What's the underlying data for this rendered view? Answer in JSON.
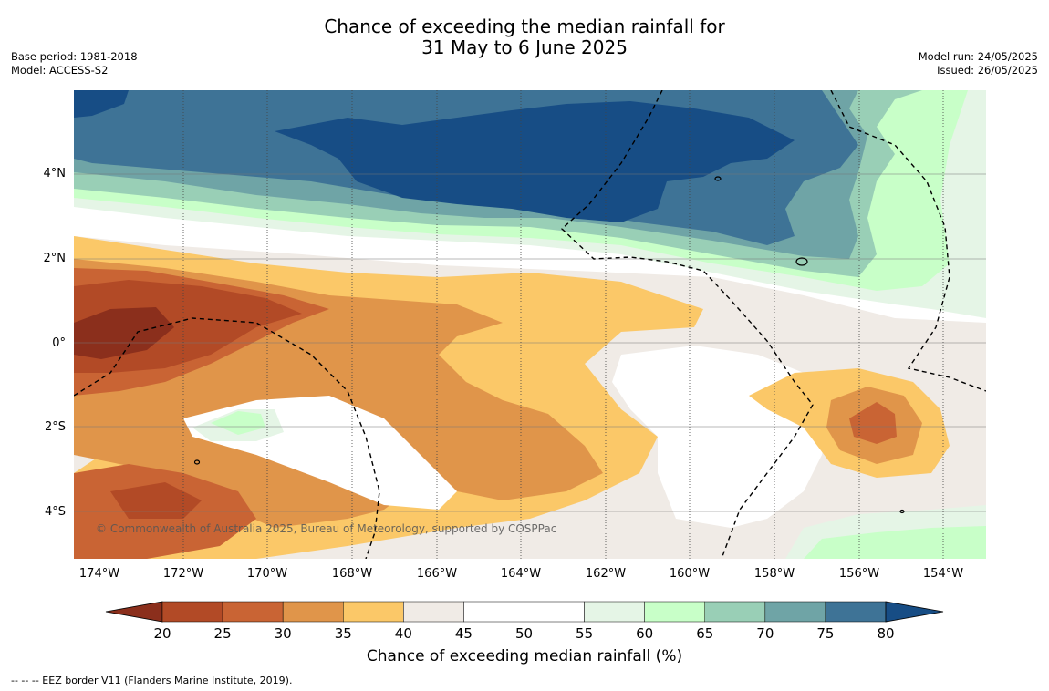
{
  "title": {
    "line1": "Chance of exceeding the median rainfall for",
    "line2": "31 May to 6 June 2025"
  },
  "meta_left": {
    "base_period": "Base period: 1981-2018",
    "model": "Model: ACCESS-S2"
  },
  "meta_right": {
    "model_run": "Model run: 24/05/2025",
    "issued": "Issued: 26/05/2025"
  },
  "map": {
    "lat_ticks": [
      "4°N",
      "2°N",
      "0°",
      "2°S",
      "4°S"
    ],
    "lon_ticks": [
      "174°W",
      "172°W",
      "170°W",
      "168°W",
      "166°W",
      "164°W",
      "162°W",
      "160°W",
      "158°W",
      "156°W",
      "154°W"
    ],
    "copyright": "© Commonwealth of Australia 2025, Bureau of Meteorology, supported by COSPPac",
    "ocean_color": "#ffffff"
  },
  "colorbar": {
    "ticks": [
      "20",
      "25",
      "30",
      "35",
      "40",
      "45",
      "50",
      "55",
      "60",
      "65",
      "70",
      "75",
      "80"
    ],
    "colors": [
      "#8b2f1c",
      "#b24a26",
      "#c96434",
      "#e0954a",
      "#fbc868",
      "#f0ebe6",
      "#ffffff",
      "#ffffff",
      "#e5f5e6",
      "#c8ffc8",
      "#99cfb6",
      "#6fa4a6",
      "#3e7396",
      "#174d85"
    ],
    "label": "Chance of exceeding median rainfall (%)"
  },
  "footnote": "--  --  -- EEZ border V11 (Flanders Marine Institute, 2019)."
}
